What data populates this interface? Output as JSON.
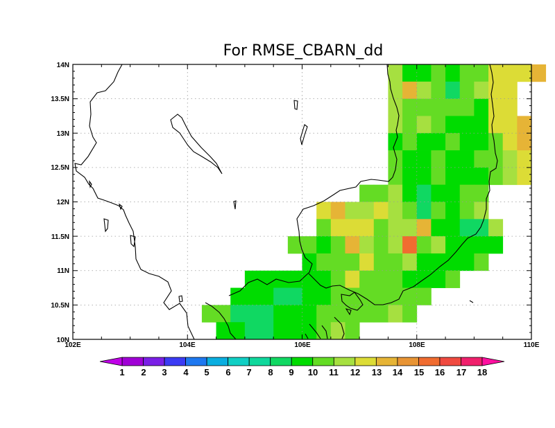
{
  "title": "For RMSE_CBARN_dd",
  "chart_data": {
    "type": "heatmap",
    "title": "For RMSE_CBARN_dd",
    "lon_range": [
      102,
      110
    ],
    "lat_range": [
      10,
      14
    ],
    "grid_step": 0.25,
    "x_ticks": [
      "102E",
      "104E",
      "106E",
      "108E",
      "110E"
    ],
    "y_ticks": [
      "10N",
      "10.5N",
      "11N",
      "11.5N",
      "12N",
      "12.5N",
      "13N",
      "13.5N",
      "14N"
    ],
    "gridlines": true,
    "colorbar": {
      "labels": [
        "1",
        "2",
        "3",
        "4",
        "5",
        "6",
        "7",
        "8",
        "9",
        "10",
        "11",
        "12",
        "13",
        "14",
        "15",
        "16",
        "17",
        "18"
      ],
      "colors": [
        "#a000d6",
        "#7a1fe6",
        "#3b3bf4",
        "#1e78f0",
        "#0aaee0",
        "#10cfc4",
        "#0fd89c",
        "#10d862",
        "#00dc00",
        "#64dc24",
        "#a6e040",
        "#dcdc36",
        "#e6b436",
        "#e89434",
        "#f06c30",
        "#f04a40",
        "#f0206c",
        "#f02096"
      ],
      "under_color": "#c000e8",
      "over_color": "#ff10a0"
    },
    "rows": [
      {
        "lat": 13.875,
        "lon0": 107.5,
        "values": [
          11,
          9,
          9,
          10,
          9,
          10,
          10,
          12,
          12,
          12,
          13
        ]
      },
      {
        "lat": 13.625,
        "lon0": 107.5,
        "values": [
          11,
          13,
          11,
          10,
          8,
          10,
          11,
          12,
          12
        ]
      },
      {
        "lat": 13.375,
        "lon0": 107.5,
        "values": [
          11,
          10,
          10,
          10,
          10,
          10,
          9,
          12,
          12
        ]
      },
      {
        "lat": 13.125,
        "lon0": 107.5,
        "values": [
          11,
          10,
          11,
          10,
          9,
          9,
          9,
          12,
          12,
          13
        ]
      },
      {
        "lat": 12.875,
        "lon0": 107.5,
        "values": [
          9,
          10,
          9,
          9,
          10,
          9,
          9,
          10,
          12,
          13
        ]
      },
      {
        "lat": 12.625,
        "lon0": 107.5,
        "values": [
          10,
          9,
          9,
          10,
          9,
          9,
          10,
          10,
          11,
          12
        ]
      },
      {
        "lat": 12.375,
        "lon0": 107.5,
        "values": [
          10,
          9,
          9,
          10,
          9,
          9,
          9,
          10,
          11,
          12
        ]
      },
      {
        "lat": 12.125,
        "lon0": 107.0,
        "values": [
          10,
          10,
          11,
          9,
          8,
          9,
          9,
          10,
          10
        ]
      },
      {
        "lat": 11.875,
        "lon0": 106.25,
        "values": [
          12,
          13,
          11,
          11,
          12,
          11,
          10,
          8,
          10,
          9,
          10,
          11
        ]
      },
      {
        "lat": 11.625,
        "lon0": 106.25,
        "values": [
          10,
          12,
          12,
          12,
          10,
          11,
          11,
          13,
          9,
          9,
          8,
          8,
          11
        ]
      },
      {
        "lat": 11.375,
        "lon0": 105.75,
        "values": [
          10,
          10,
          9,
          10,
          13,
          11,
          10,
          11,
          15,
          10,
          11,
          9,
          9,
          9,
          9
        ]
      },
      {
        "lat": 11.125,
        "lon0": 106.0,
        "values": [
          9,
          10,
          10,
          10,
          12,
          10,
          10,
          11,
          9,
          9,
          9,
          9,
          10
        ]
      },
      {
        "lat": 10.875,
        "lon0": 105.0,
        "values": [
          9,
          9,
          9,
          9,
          9,
          9,
          10,
          12,
          10,
          10,
          10,
          9,
          9,
          9,
          10
        ]
      },
      {
        "lat": 10.625,
        "lon0": 104.75,
        "values": [
          9,
          9,
          9,
          8,
          8,
          9,
          9,
          10,
          10,
          10,
          10,
          10,
          10,
          10
        ]
      },
      {
        "lat": 10.375,
        "lon0": 104.25,
        "values": [
          10,
          10,
          8,
          8,
          8,
          9,
          9,
          9,
          10,
          10,
          10,
          10,
          10,
          11,
          10
        ]
      },
      {
        "lat": 10.125,
        "lon0": 104.5,
        "values": [
          9,
          9,
          8,
          8,
          9,
          9,
          9,
          10,
          11,
          10
        ]
      }
    ]
  }
}
